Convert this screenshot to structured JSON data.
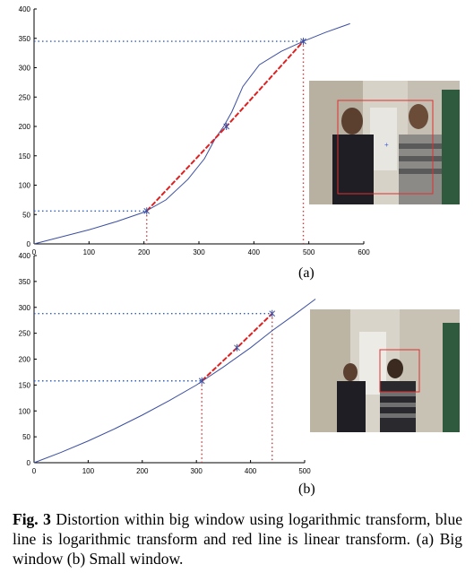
{
  "figure": {
    "caption_fig": "Fig. 3",
    "caption_text": "Distortion within big window using logarithmic transform, blue line is logarithmic transform and red line is linear transform. (a) Big window (b) Small window.",
    "panel_a_label": "(a)",
    "panel_b_label": "(b)"
  },
  "colors": {
    "blue_curve": "#3b4fa0",
    "red_line": "#e02020",
    "box": "#e03030"
  },
  "chart_data": [
    {
      "type": "line",
      "panel": "(a)",
      "title": "",
      "xlabel": "",
      "ylabel": "",
      "xlim": [
        0,
        600
      ],
      "ylim": [
        0,
        400
      ],
      "xticks": [
        0,
        100,
        200,
        300,
        400,
        500,
        600
      ],
      "yticks": [
        0,
        50,
        100,
        150,
        200,
        250,
        300,
        350,
        400
      ],
      "grid": false,
      "series": [
        {
          "x": [
            0,
            50,
            100,
            150,
            200,
            240,
            280,
            310,
            330,
            345,
            360,
            380,
            410,
            450,
            490,
            530,
            575
          ],
          "y": [
            0,
            12,
            24,
            38,
            54,
            75,
            110,
            145,
            180,
            200,
            225,
            268,
            305,
            328,
            345,
            360,
            375
          ]
        },
        {
          "x": [
            205,
            350,
            490
          ],
          "y": [
            56,
            200,
            345
          ]
        }
      ],
      "markers": [
        {
          "x": 205,
          "y": 56
        },
        {
          "x": 350,
          "y": 200
        },
        {
          "x": 490,
          "y": 345
        }
      ]
    },
    {
      "type": "line",
      "panel": "(b)",
      "title": "",
      "xlabel": "",
      "ylabel": "",
      "xlim": [
        0,
        500
      ],
      "ylim": [
        0,
        400
      ],
      "xticks": [
        0,
        100,
        200,
        300,
        400,
        500
      ],
      "yticks": [
        0,
        50,
        100,
        150,
        200,
        250,
        300,
        350,
        400
      ],
      "grid": false,
      "series": [
        {
          "x": [
            0,
            50,
            100,
            150,
            200,
            250,
            300,
            350,
            400,
            440,
            480,
            520
          ],
          "y": [
            0,
            20,
            42,
            66,
            92,
            120,
            150,
            185,
            222,
            255,
            285,
            316
          ]
        },
        {
          "x": [
            310,
            375,
            440
          ],
          "y": [
            158,
            222,
            288
          ]
        }
      ],
      "markers": [
        {
          "x": 310,
          "y": 158
        },
        {
          "x": 375,
          "y": 222
        },
        {
          "x": 440,
          "y": 288
        }
      ]
    }
  ]
}
